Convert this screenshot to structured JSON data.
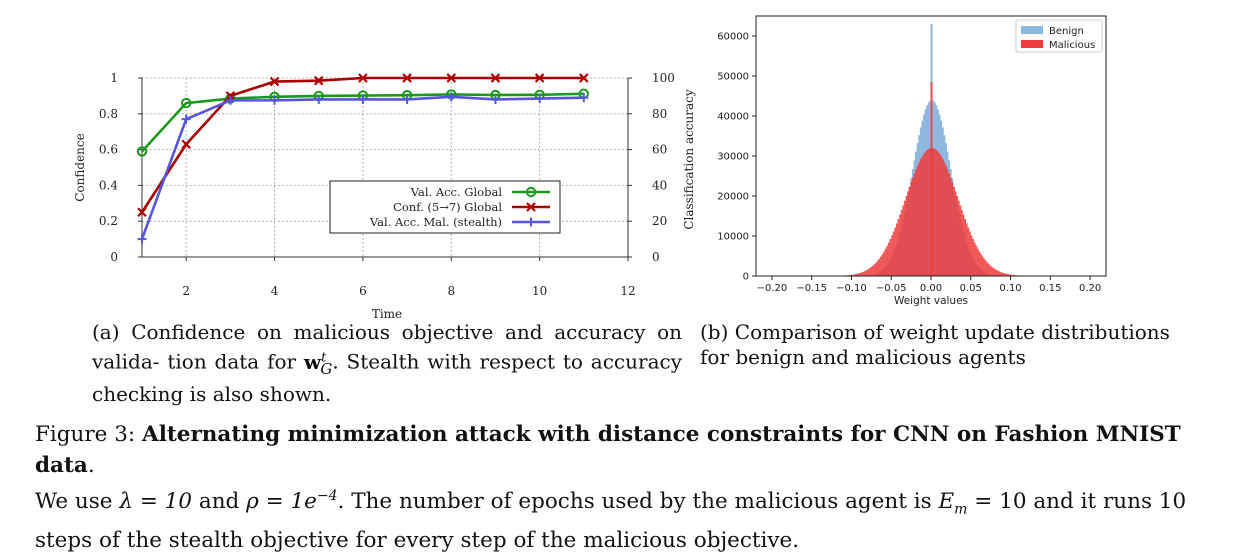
{
  "chart_data": [
    {
      "type": "line",
      "xlabel": "Time",
      "ylabel": "Confidence",
      "ylabel_right": "Classification accuracy",
      "xlim": [
        1,
        12
      ],
      "ylim": [
        0,
        1
      ],
      "ylim_right": [
        0,
        100
      ],
      "xticks": [
        "2",
        "4",
        "6",
        "8",
        "10",
        "12"
      ],
      "yticks": [
        "0",
        "0.2",
        "0.4",
        "0.6",
        "0.8",
        "1"
      ],
      "yticks_right": [
        "0",
        "20",
        "40",
        "60",
        "80",
        "100"
      ],
      "grid": "dotted",
      "legend_position": "center-right",
      "x": [
        1,
        2,
        3,
        4,
        5,
        6,
        7,
        8,
        9,
        10,
        11
      ],
      "series": [
        {
          "name": "Val. Acc. Global",
          "axis": "right",
          "color": "#1a9a1a",
          "marker": "circle",
          "values": [
            59,
            86,
            88.5,
            89.5,
            90,
            90.2,
            90.4,
            90.8,
            90.5,
            90.6,
            91.2
          ]
        },
        {
          "name": "Conf. (5→7) Global",
          "axis": "left",
          "color": "#aa0000",
          "marker": "x",
          "values": [
            0.25,
            0.63,
            0.9,
            0.98,
            0.985,
            1.0,
            1.0,
            1.0,
            1.0,
            1.0,
            1.0
          ]
        },
        {
          "name": "Val. Acc. Mal. (stealth)",
          "axis": "right",
          "color": "#5555dd",
          "marker": "plus",
          "values": [
            10,
            77,
            87.5,
            87.5,
            88,
            88,
            88,
            89.5,
            88,
            88.5,
            89
          ]
        }
      ]
    },
    {
      "type": "histogram",
      "xlabel": "Weight values",
      "ylabel": "",
      "xlim": [
        -0.22,
        0.22
      ],
      "ylim": [
        0,
        65000
      ],
      "xticks": [
        "−0.20",
        "−0.15",
        "−0.10",
        "−0.05",
        "0.00",
        "0.05",
        "0.10",
        "0.15",
        "0.20"
      ],
      "yticks": [
        "0",
        "10000",
        "20000",
        "30000",
        "40000",
        "50000",
        "60000"
      ],
      "legend_position": "top-right",
      "series": [
        {
          "name": "Benign",
          "color": "#8fb8de",
          "distribution": "normal",
          "mean": 0.0,
          "std": 0.024,
          "peak": 44000,
          "spike_at_zero": 63000
        },
        {
          "name": "Malicious",
          "color": "#ee3b3b",
          "distribution": "normal",
          "mean": 0.0,
          "std": 0.033,
          "peak": 32000,
          "spike_at_zero": 48500
        }
      ]
    }
  ],
  "captions": {
    "a_label": "(a)",
    "a_text_1": "Confidence on malicious objective and accuracy on valida-",
    "a_text_2": "tion data for",
    "a_symbol": "w",
    "a_superscript": "t",
    "a_subscript": "G",
    "a_text_3": ". Stealth with respect to accuracy checking is",
    "a_text_4": "also shown.",
    "b_label": "(b)",
    "b_text_1": "Comparison of weight update distributions",
    "b_text_2": "for benign and malicious agents"
  },
  "figure_caption": {
    "label": "Figure 3:",
    "title": "Alternating minimization attack with distance constraints for CNN on Fashion MNIST data",
    "line2_a": "We use",
    "lambda_expr": "λ = 10",
    "and": "and",
    "rho_lhs": "ρ = 1",
    "rho_e": "e",
    "rho_exp": "−4",
    "line2_b": ". The number of epochs used by the malicious agent is",
    "em_sym": "E",
    "em_sub": "m",
    "em_val": "= 10",
    "line2_c": "and it runs 10",
    "line3": "steps of the stealth objective for every step of the malicious objective."
  }
}
